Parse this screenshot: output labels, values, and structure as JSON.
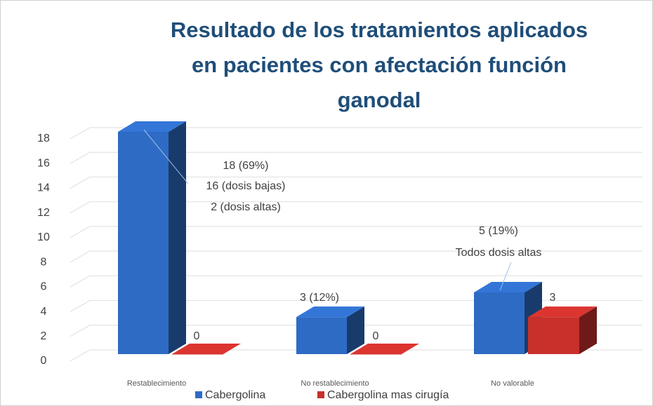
{
  "chart_data": {
    "type": "bar3d",
    "title": [
      "Resultado de los tratamientos aplicados",
      "en pacientes con afectación función",
      "ganodal"
    ],
    "categories": [
      "Restablecimiento",
      "No restablecimiento",
      "No valorable"
    ],
    "series": [
      {
        "name": "Cabergolina",
        "color": "#2e6bc4",
        "values": [
          18,
          3,
          5
        ],
        "value_labels": [
          "18 (69%)",
          "3 (12%)",
          "5 (19%)"
        ]
      },
      {
        "name": "Cabergolina mas cirugía",
        "color": "#c8302c",
        "values": [
          0,
          0,
          3
        ]
      }
    ],
    "annotations": [
      "16 (dosis bajas)",
      "2 (dosis altas)",
      "Todos dosis altas"
    ],
    "ylim": [
      0,
      18
    ],
    "yticks": [
      0,
      2,
      4,
      6,
      8,
      10,
      12,
      14,
      16,
      18
    ],
    "grid": true,
    "legend": "bottom"
  }
}
